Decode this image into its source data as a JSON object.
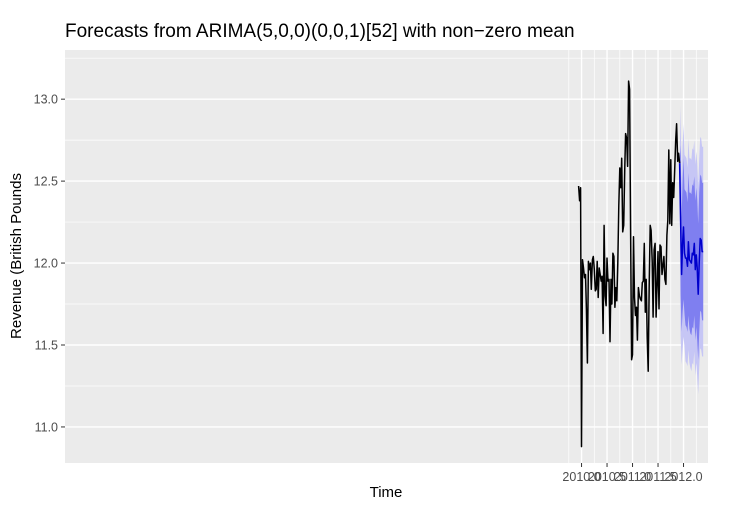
{
  "chart_data": {
    "type": "line",
    "title": "Forecasts from ARIMA(5,0,0)(0,0,1)[52] with non−zero mean",
    "xlabel": "Time",
    "ylabel": "Revenue (British Pounds",
    "xlim": [
      1999.87,
      2012.48
    ],
    "ylim": [
      10.78,
      13.3
    ],
    "x_ticks": [
      2010.0,
      2010.5,
      2011.0,
      2011.5,
      2012.0
    ],
    "x_tick_labels": [
      "2010.0",
      "2010.5",
      "2011.0",
      "2011.5",
      "2012.0"
    ],
    "y_ticks": [
      11.0,
      11.5,
      12.0,
      12.5,
      13.0
    ],
    "y_tick_labels": [
      "11.0",
      "11.5",
      "12.0",
      "12.5",
      "13.0"
    ],
    "grid": true,
    "legend": "none",
    "colors": {
      "panel_background": "#ebebeb",
      "grid_line": "#ffffff",
      "history_line": "#000000",
      "forecast_line": "#0000cc",
      "interval_80": "#7f7ff0",
      "interval_95": "#c6c6f5"
    },
    "series": [
      {
        "role": "history",
        "x": [
          2009.942,
          2009.962,
          2009.981,
          2010.0,
          2010.019,
          2010.038,
          2010.058,
          2010.077,
          2010.096,
          2010.115,
          2010.135,
          2010.154,
          2010.173,
          2010.192,
          2010.212,
          2010.231,
          2010.25,
          2010.269,
          2010.288,
          2010.308,
          2010.327,
          2010.346,
          2010.365,
          2010.385,
          2010.404,
          2010.423,
          2010.442,
          2010.462,
          2010.481,
          2010.5,
          2010.519,
          2010.538,
          2010.558,
          2010.577,
          2010.596,
          2010.615,
          2010.635,
          2010.654,
          2010.673,
          2010.692,
          2010.712,
          2010.731,
          2010.75,
          2010.769,
          2010.788,
          2010.808,
          2010.827,
          2010.846,
          2010.865,
          2010.885,
          2010.904,
          2010.923,
          2010.942,
          2010.962,
          2010.981,
          2011.0,
          2011.019,
          2011.038,
          2011.058,
          2011.077,
          2011.096,
          2011.115,
          2011.135,
          2011.154,
          2011.173,
          2011.192,
          2011.212,
          2011.231,
          2011.25,
          2011.269,
          2011.288,
          2011.308,
          2011.327,
          2011.346,
          2011.365,
          2011.385,
          2011.404,
          2011.423,
          2011.442,
          2011.462,
          2011.481,
          2011.5,
          2011.519,
          2011.538,
          2011.558,
          2011.577,
          2011.596,
          2011.615,
          2011.635,
          2011.654,
          2011.673,
          2011.692,
          2011.712,
          2011.731,
          2011.75,
          2011.769,
          2011.788,
          2011.808,
          2011.827,
          2011.846,
          2011.865,
          2011.885,
          2011.904,
          2011.923
        ],
        "values": [
          12.47,
          12.38,
          12.46,
          10.88,
          12.02,
          11.97,
          11.91,
          11.93,
          11.72,
          11.39,
          12.01,
          11.96,
          12.0,
          11.84,
          12.02,
          12.04,
          11.96,
          11.83,
          11.84,
          12.01,
          11.79,
          11.97,
          11.93,
          11.89,
          11.92,
          11.57,
          12.23,
          11.8,
          11.74,
          12.03,
          11.89,
          11.9,
          11.52,
          11.9,
          11.75,
          12.06,
          12.04,
          11.73,
          11.85,
          11.77,
          12.0,
          12.35,
          12.58,
          12.46,
          12.64,
          12.19,
          12.23,
          12.56,
          12.79,
          12.76,
          12.59,
          13.11,
          13.06,
          12.2,
          11.41,
          11.44,
          12.16,
          11.79,
          11.68,
          11.73,
          11.53,
          11.85,
          11.8,
          11.78,
          11.77,
          11.88,
          11.89,
          12.12,
          11.7,
          11.9,
          11.55,
          11.34,
          11.87,
          12.23,
          12.2,
          12.01,
          11.67,
          12.08,
          12.12,
          11.67,
          11.87,
          12.07,
          11.72,
          12.11,
          12.1,
          11.93,
          11.98,
          12.04,
          11.9,
          11.87,
          12.17,
          12.26,
          12.69,
          12.24,
          12.63,
          12.23,
          12.49,
          12.4,
          12.57,
          12.75,
          12.85,
          12.62,
          12.67,
          12.61
        ]
      },
      {
        "role": "forecast",
        "x": [
          2011.923,
          2011.942,
          2011.962,
          2011.981,
          2012.0,
          2012.019,
          2012.038,
          2012.058,
          2012.077,
          2012.096,
          2012.115,
          2012.135,
          2012.154,
          2012.173,
          2012.192,
          2012.212,
          2012.231,
          2012.25,
          2012.269,
          2012.288,
          2012.308,
          2012.327,
          2012.346,
          2012.365,
          2012.385
        ],
        "values": [
          12.61,
          12.26,
          11.93,
          12.12,
          12.22,
          12.06,
          12.03,
          12.03,
          11.98,
          12.13,
          12.02,
          12.01,
          12.0,
          12.06,
          12.05,
          12.12,
          11.96,
          12.05,
          11.97,
          11.81,
          12.0,
          12.15,
          12.14,
          12.07,
          12.07
        ],
        "lower_80": [
          12.61,
          11.8,
          11.58,
          11.7,
          11.78,
          11.69,
          11.62,
          11.61,
          11.58,
          11.68,
          11.6,
          11.57,
          11.56,
          11.61,
          11.6,
          11.68,
          11.53,
          11.61,
          11.53,
          11.41,
          11.57,
          11.71,
          11.7,
          11.65,
          11.65
        ],
        "upper_80": [
          12.61,
          12.72,
          12.28,
          12.5,
          12.64,
          12.45,
          12.44,
          12.43,
          12.37,
          12.55,
          12.43,
          12.43,
          12.42,
          12.48,
          12.47,
          12.53,
          12.38,
          12.46,
          12.39,
          12.24,
          12.43,
          12.54,
          12.53,
          12.49,
          12.49
        ],
        "lower_95": [
          12.61,
          11.56,
          11.38,
          11.47,
          11.55,
          11.49,
          11.4,
          11.39,
          11.37,
          11.47,
          11.39,
          11.36,
          11.34,
          11.39,
          11.38,
          11.46,
          11.31,
          11.39,
          11.31,
          11.2,
          11.36,
          11.48,
          11.47,
          11.43,
          11.43
        ],
        "upper_95": [
          12.61,
          12.96,
          12.48,
          12.72,
          12.85,
          12.66,
          12.65,
          12.64,
          12.58,
          12.76,
          12.64,
          12.64,
          12.63,
          12.7,
          12.69,
          12.75,
          12.6,
          12.68,
          12.61,
          12.46,
          12.63,
          12.77,
          12.76,
          12.71,
          12.71
        ]
      }
    ]
  }
}
